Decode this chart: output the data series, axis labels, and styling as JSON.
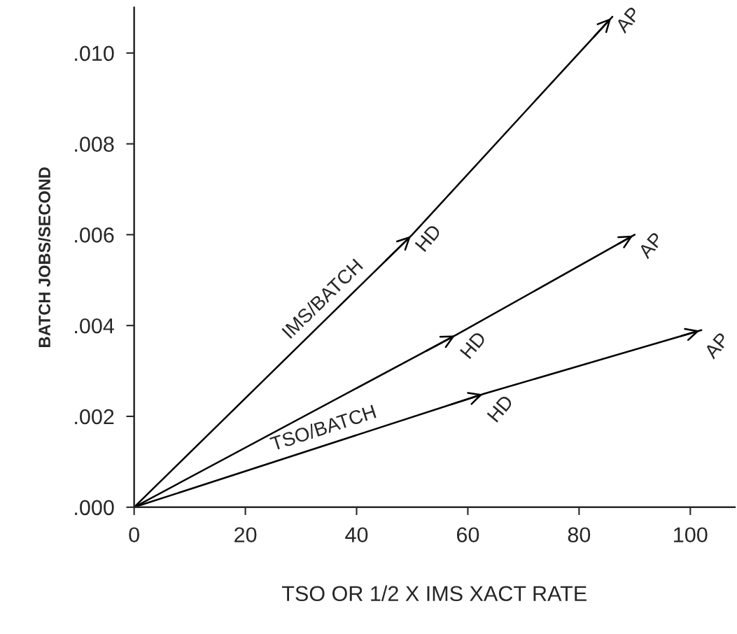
{
  "chart_data": {
    "type": "line",
    "xlabel": "TSO OR 1/2 X IMS XACT RATE",
    "ylabel": "BATCH JOBS/SECOND",
    "series": [
      {
        "color": "#000000",
        "x": [
          0,
          50,
          86
        ],
        "values": [
          0,
          0.006,
          0.0108
        ]
      },
      {
        "color": "#000000",
        "x": [
          0,
          58,
          90
        ],
        "values": [
          0,
          0.0038,
          0.006
        ]
      },
      {
        "color": "#000000",
        "x": [
          0,
          63,
          102
        ],
        "values": [
          0,
          0.0025,
          0.0039
        ]
      }
    ],
    "xlim": [
      0,
      108
    ],
    "ylim": [
      0,
      0.011
    ],
    "xticks": [
      0,
      20,
      40,
      60,
      80,
      100
    ],
    "yticks": [
      {
        "value": 0,
        "label": ".000"
      },
      {
        "value": 0.002,
        "label": ".002"
      },
      {
        "value": 0.004,
        "label": ".004"
      },
      {
        "value": 0.006,
        "label": ".006"
      },
      {
        "value": 0.008,
        "label": ".008"
      },
      {
        "value": 0.01,
        "label": ".010"
      }
    ],
    "grid": false,
    "legend": false,
    "marker": "none",
    "line_style": "solid",
    "annotations": [
      {
        "text": "IMS/BATCH",
        "x": 36,
        "y": 0.00432
      },
      {
        "text": "TSO/BATCH",
        "x": 35,
        "y": 0.00139
      },
      {
        "text": "HD",
        "x": 50,
        "y": 0.006
      },
      {
        "text": "HD",
        "x": 58,
        "y": 0.0038
      },
      {
        "text": "HD",
        "x": 63,
        "y": 0.0025
      },
      {
        "text": "AP",
        "x": 86,
        "y": 0.0108
      },
      {
        "text": "AP",
        "x": 90,
        "y": 0.006
      },
      {
        "text": "AP",
        "x": 102,
        "y": 0.0039
      }
    ]
  }
}
